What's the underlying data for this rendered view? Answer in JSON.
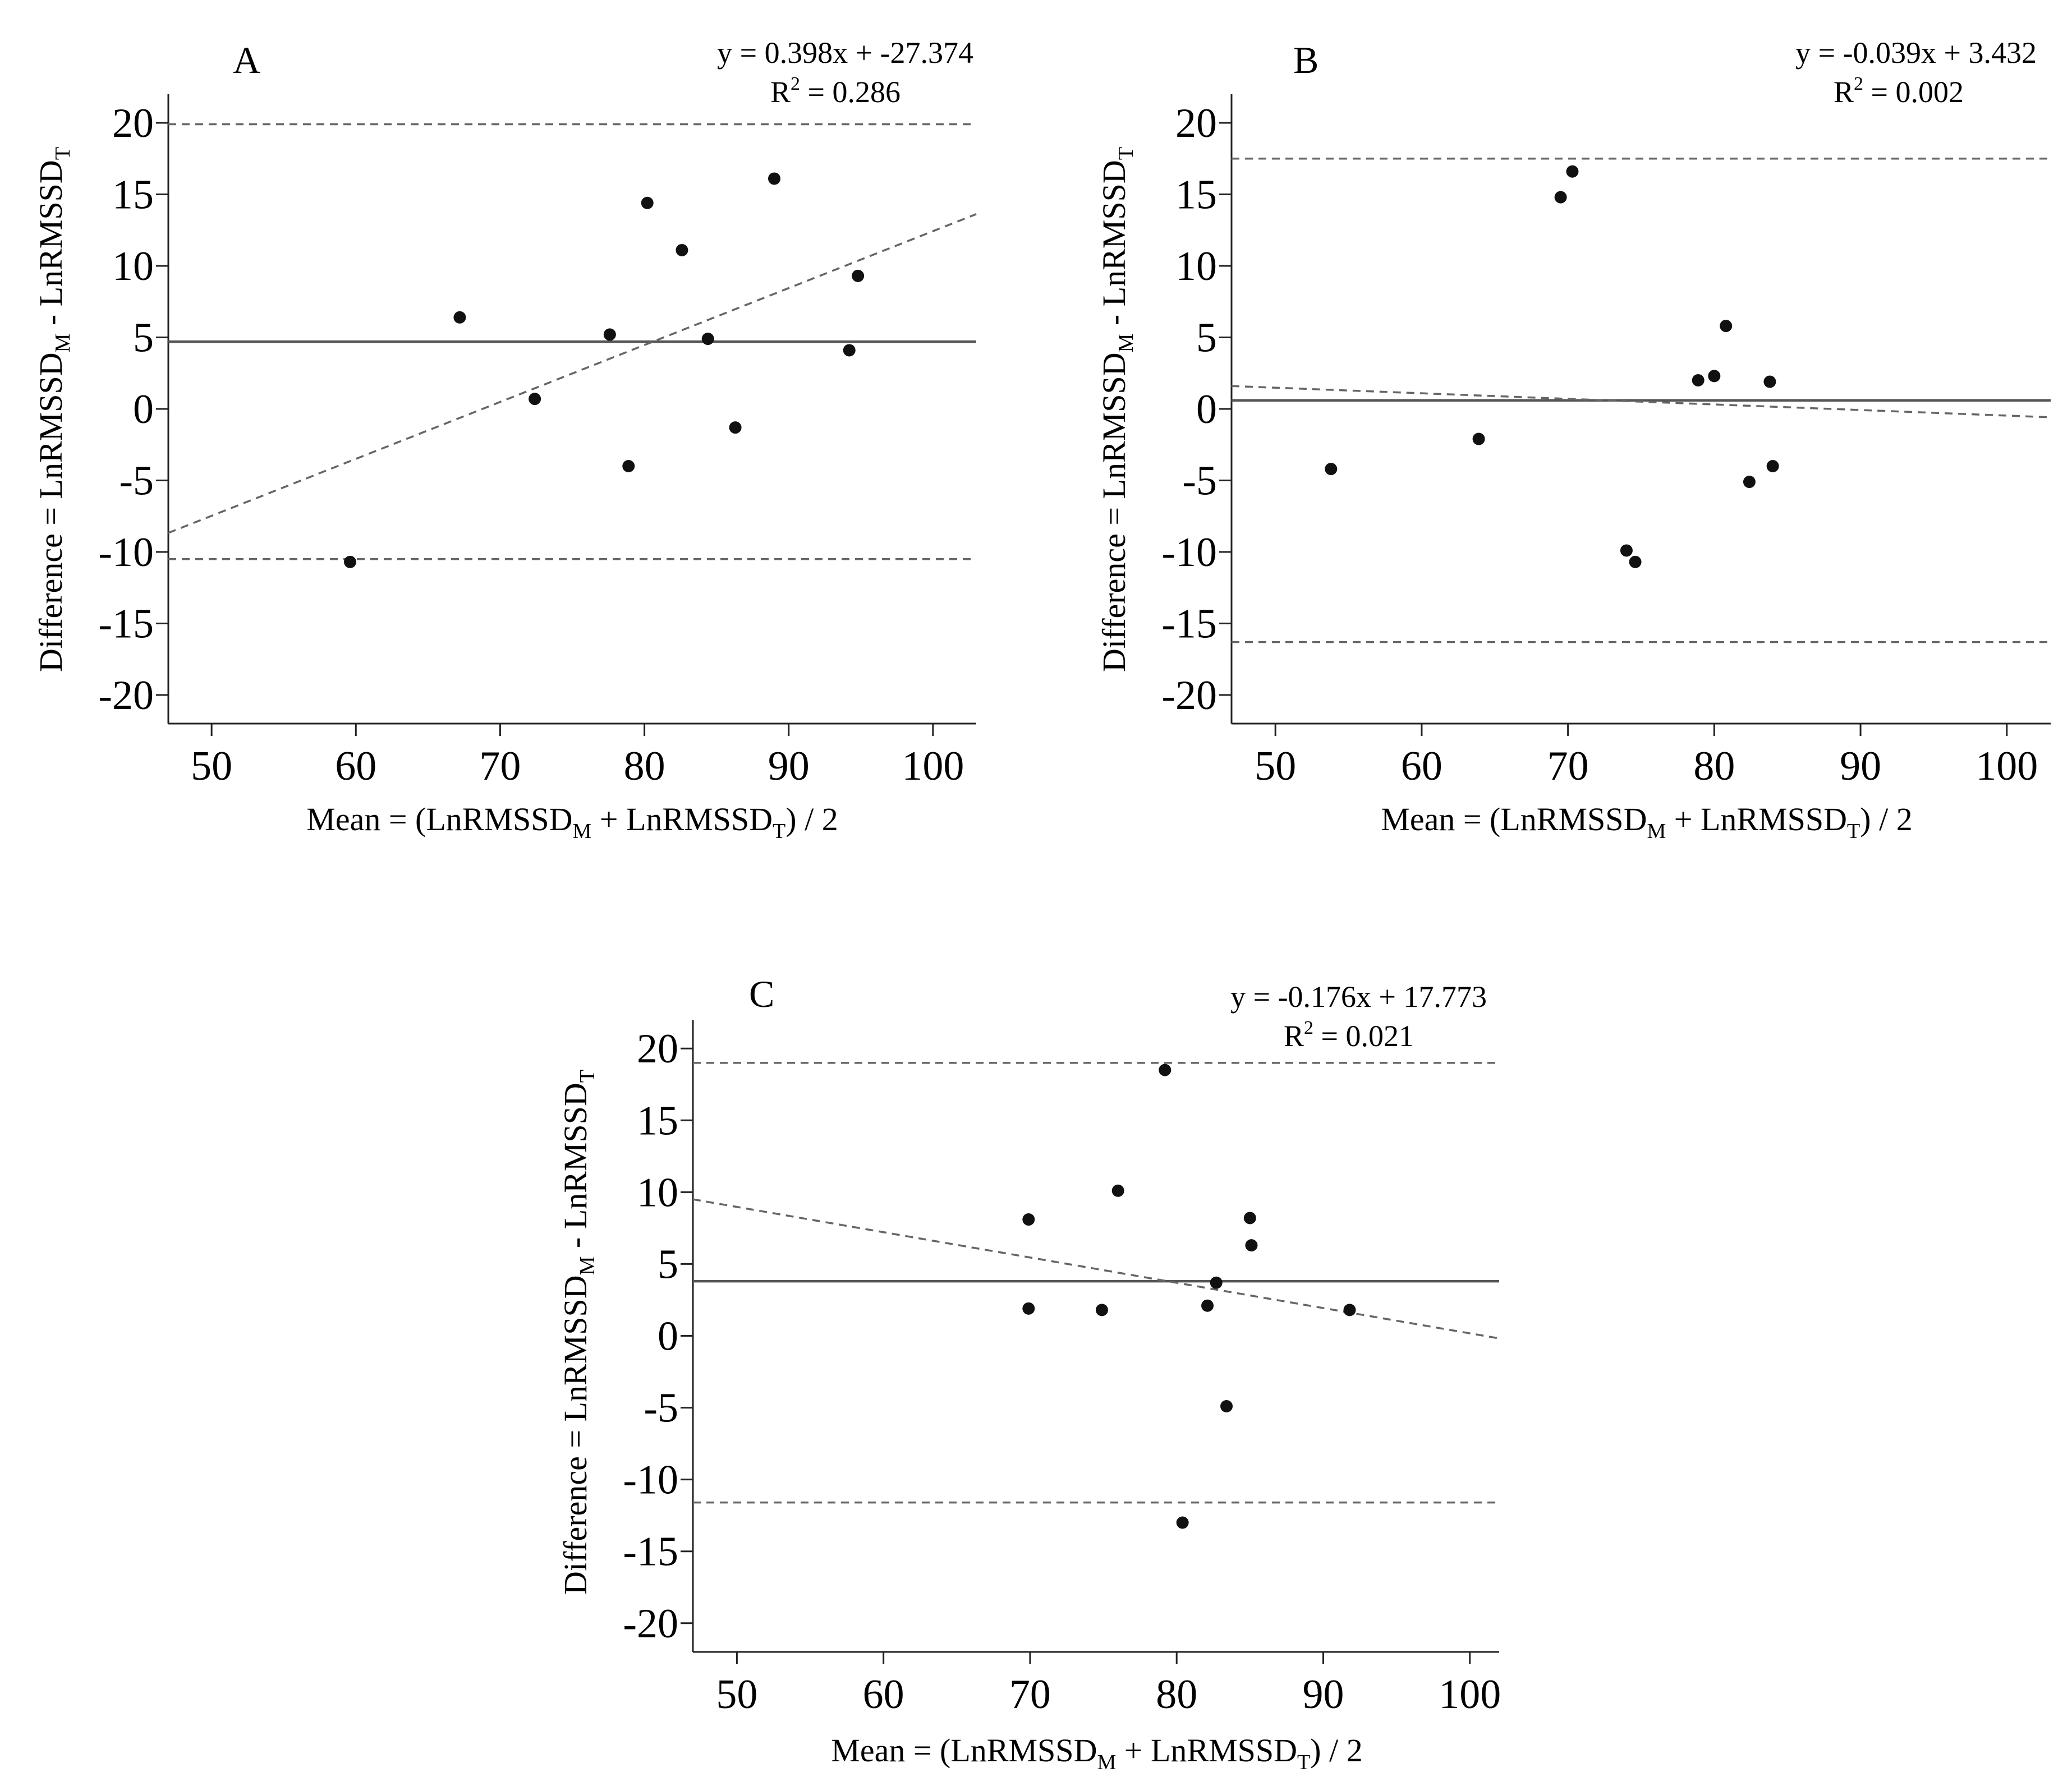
{
  "chart_data": [
    {
      "type": "scatter",
      "panel_label": "A",
      "equation": "y = 0.398x + -27.374",
      "r2_label": "R",
      "r2_sup": "2",
      "r2_value": " = 0.286",
      "xlabel": {
        "prefix": "Mean = (LnRMSSD",
        "sub1": "M",
        "mid": " + LnRMSSD",
        "sub2": "T",
        "suffix": ") / 2"
      },
      "ylabel": {
        "prefix": "Difference = LnRMSSD",
        "sub1": "M",
        "mid": " - LnRMSSD",
        "sub2": "T"
      },
      "xlim": [
        47,
        103
      ],
      "ylim": [
        -22,
        22
      ],
      "xticks": [
        50,
        60,
        70,
        80,
        90,
        100
      ],
      "yticks": [
        20,
        15,
        10,
        5,
        0,
        -5,
        -10,
        -15,
        -20
      ],
      "mean_bias": 4.7,
      "upper_loa": 19.9,
      "lower_loa": -10.5,
      "regression": {
        "slope": 0.398,
        "intercept": -27.374
      },
      "points": [
        {
          "x": 59.6,
          "y": -10.7
        },
        {
          "x": 67.2,
          "y": 6.4
        },
        {
          "x": 72.4,
          "y": 0.7
        },
        {
          "x": 77.6,
          "y": 5.2
        },
        {
          "x": 78.9,
          "y": -4.0
        },
        {
          "x": 80.2,
          "y": 14.4
        },
        {
          "x": 82.6,
          "y": 11.1
        },
        {
          "x": 84.4,
          "y": 4.9
        },
        {
          "x": 86.3,
          "y": -1.3
        },
        {
          "x": 89.0,
          "y": 16.1
        },
        {
          "x": 94.2,
          "y": 4.1
        },
        {
          "x": 94.8,
          "y": 9.3
        }
      ]
    },
    {
      "type": "scatter",
      "panel_label": "B",
      "equation": "y = -0.039x + 3.432",
      "r2_label": "R",
      "r2_sup": "2",
      "r2_value": " = 0.002",
      "xlabel": {
        "prefix": "Mean = (LnRMSSD",
        "sub1": "M",
        "mid": " + LnRMSSD",
        "sub2": "T",
        "suffix": ") / 2"
      },
      "ylabel": {
        "prefix": "Difference = LnRMSSD",
        "sub1": "M",
        "mid": " - LnRMSSD",
        "sub2": "T"
      },
      "xlim": [
        47,
        103
      ],
      "ylim": [
        -22,
        22
      ],
      "xticks": [
        50,
        60,
        70,
        80,
        90,
        100
      ],
      "yticks": [
        20,
        15,
        10,
        5,
        0,
        -5,
        -10,
        -15,
        -20
      ],
      "mean_bias": 0.6,
      "upper_loa": 17.5,
      "lower_loa": -16.3,
      "regression": {
        "slope": -0.039,
        "intercept": 3.432
      },
      "points": [
        {
          "x": 53.8,
          "y": -4.2
        },
        {
          "x": 63.9,
          "y": -2.1
        },
        {
          "x": 69.5,
          "y": 14.8
        },
        {
          "x": 70.3,
          "y": 16.6
        },
        {
          "x": 74.0,
          "y": -9.9
        },
        {
          "x": 74.6,
          "y": -10.7
        },
        {
          "x": 78.9,
          "y": 2.0
        },
        {
          "x": 80.0,
          "y": 2.3
        },
        {
          "x": 80.8,
          "y": 5.8
        },
        {
          "x": 82.4,
          "y": -5.1
        },
        {
          "x": 83.8,
          "y": 1.9
        },
        {
          "x": 84.0,
          "y": -4.0
        }
      ]
    },
    {
      "type": "scatter",
      "panel_label": "C",
      "equation": "y = -0.176x + 17.773",
      "r2_label": "R",
      "r2_sup": "2",
      "r2_value": " = 0.021",
      "xlabel": {
        "prefix": "Mean = (LnRMSSD",
        "sub1": "M",
        "mid": " + LnRMSSD",
        "sub2": "T",
        "suffix": ") / 2"
      },
      "ylabel": {
        "prefix": "Difference = LnRMSSD",
        "sub1": "M",
        "mid": " - LnRMSSD",
        "sub2": "T"
      },
      "xlim": [
        47,
        102
      ],
      "ylim": [
        -22,
        22
      ],
      "xticks": [
        50,
        60,
        70,
        80,
        90,
        100
      ],
      "yticks": [
        20,
        15,
        10,
        5,
        0,
        -5,
        -10,
        -15,
        -20
      ],
      "mean_bias": 3.8,
      "upper_loa": 19.0,
      "lower_loa": -11.6,
      "regression": {
        "slope": -0.176,
        "intercept": 17.773
      },
      "points": [
        {
          "x": 69.9,
          "y": 8.1
        },
        {
          "x": 69.9,
          "y": 1.9
        },
        {
          "x": 74.9,
          "y": 1.8
        },
        {
          "x": 76.0,
          "y": 10.1
        },
        {
          "x": 79.2,
          "y": 18.5
        },
        {
          "x": 80.4,
          "y": -13.0
        },
        {
          "x": 82.1,
          "y": 2.1
        },
        {
          "x": 82.7,
          "y": 3.7
        },
        {
          "x": 83.4,
          "y": -4.9
        },
        {
          "x": 85.0,
          "y": 8.2
        },
        {
          "x": 85.1,
          "y": 6.3
        },
        {
          "x": 91.8,
          "y": 1.8
        }
      ]
    }
  ]
}
